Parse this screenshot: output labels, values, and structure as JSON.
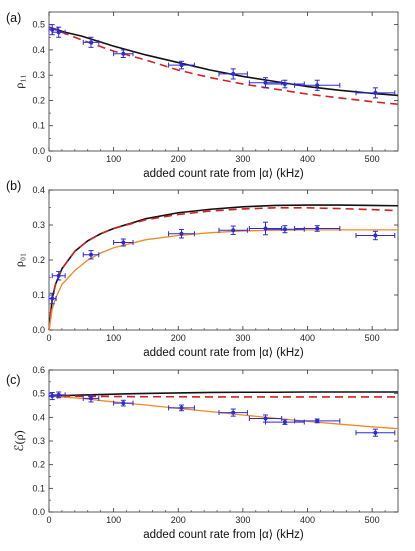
{
  "chart_data": [
    {
      "type": "scatter",
      "panel_label": "(a)",
      "xlabel": "added count rate from |α⟩ (kHz)",
      "ylabel": "ρ₁₁",
      "xlim": [
        0,
        540
      ],
      "ylim": [
        0,
        0.55
      ],
      "x_ticks": [
        0,
        100,
        200,
        300,
        400,
        500
      ],
      "y_ticks": [
        0.0,
        0.1,
        0.2,
        0.3,
        0.4,
        0.5
      ],
      "grid": false,
      "series": [
        {
          "kind": "points",
          "color": "#2b2bd9",
          "points": [
            {
              "x": 5,
              "y": 0.48,
              "xerr": 8,
              "yerr": 0.02
            },
            {
              "x": 15,
              "y": 0.47,
              "xerr": 10,
              "yerr": 0.02
            },
            {
              "x": 65,
              "y": 0.43,
              "xerr": 12,
              "yerr": 0.02
            },
            {
              "x": 115,
              "y": 0.385,
              "xerr": 15,
              "yerr": 0.015
            },
            {
              "x": 205,
              "y": 0.34,
              "xerr": 20,
              "yerr": 0.015
            },
            {
              "x": 285,
              "y": 0.305,
              "xerr": 22,
              "yerr": 0.02
            },
            {
              "x": 335,
              "y": 0.27,
              "xerr": 25,
              "yerr": 0.02
            },
            {
              "x": 365,
              "y": 0.265,
              "xerr": 30,
              "yerr": 0.015
            },
            {
              "x": 415,
              "y": 0.26,
              "xerr": 35,
              "yerr": 0.02
            },
            {
              "x": 505,
              "y": 0.23,
              "xerr": 30,
              "yerr": 0.02
            }
          ]
        },
        {
          "kind": "line",
          "color": "#111111",
          "dash": "",
          "x": [
            0,
            25,
            50,
            100,
            150,
            200,
            250,
            300,
            350,
            400,
            450,
            500,
            540
          ],
          "y": [
            0.49,
            0.47,
            0.455,
            0.415,
            0.38,
            0.35,
            0.32,
            0.295,
            0.275,
            0.255,
            0.24,
            0.228,
            0.22
          ]
        },
        {
          "kind": "line",
          "color": "#d42020",
          "dash": "8,5",
          "x": [
            0,
            25,
            50,
            100,
            150,
            200,
            250,
            300,
            350,
            400,
            450,
            500,
            540
          ],
          "y": [
            0.49,
            0.465,
            0.44,
            0.395,
            0.36,
            0.32,
            0.29,
            0.265,
            0.245,
            0.225,
            0.21,
            0.195,
            0.185
          ]
        }
      ]
    },
    {
      "type": "scatter",
      "panel_label": "(b)",
      "xlabel": "added count rate from |α⟩ (kHz)",
      "ylabel": "ρ₀₁",
      "xlim": [
        0,
        540
      ],
      "ylim": [
        0,
        0.4
      ],
      "x_ticks": [
        0,
        100,
        200,
        300,
        400,
        500
      ],
      "y_ticks": [
        0.0,
        0.1,
        0.2,
        0.3,
        0.4
      ],
      "grid": false,
      "series": [
        {
          "kind": "points",
          "color": "#2b2bd9",
          "points": [
            {
              "x": 5,
              "y": 0.09,
              "xerr": 6,
              "yerr": 0.015
            },
            {
              "x": 15,
              "y": 0.155,
              "xerr": 10,
              "yerr": 0.012
            },
            {
              "x": 65,
              "y": 0.215,
              "xerr": 12,
              "yerr": 0.012
            },
            {
              "x": 115,
              "y": 0.25,
              "xerr": 15,
              "yerr": 0.01
            },
            {
              "x": 205,
              "y": 0.275,
              "xerr": 20,
              "yerr": 0.012
            },
            {
              "x": 285,
              "y": 0.285,
              "xerr": 22,
              "yerr": 0.012
            },
            {
              "x": 335,
              "y": 0.29,
              "xerr": 25,
              "yerr": 0.018
            },
            {
              "x": 365,
              "y": 0.288,
              "xerr": 30,
              "yerr": 0.01
            },
            {
              "x": 415,
              "y": 0.29,
              "xerr": 35,
              "yerr": 0.008
            },
            {
              "x": 505,
              "y": 0.27,
              "xerr": 30,
              "yerr": 0.012
            }
          ]
        },
        {
          "kind": "line",
          "color": "#111111",
          "dash": "",
          "x": [
            0,
            5,
            10,
            20,
            40,
            60,
            80,
            100,
            150,
            200,
            250,
            300,
            350,
            400,
            450,
            500,
            540
          ],
          "y": [
            0.0,
            0.09,
            0.13,
            0.175,
            0.225,
            0.255,
            0.275,
            0.29,
            0.318,
            0.335,
            0.345,
            0.352,
            0.356,
            0.357,
            0.357,
            0.356,
            0.355
          ]
        },
        {
          "kind": "line",
          "color": "#d42020",
          "dash": "8,5",
          "x": [
            0,
            5,
            10,
            20,
            40,
            60,
            80,
            100,
            150,
            200,
            250,
            300,
            350,
            400,
            450,
            500,
            540
          ],
          "y": [
            0.0,
            0.09,
            0.13,
            0.175,
            0.225,
            0.255,
            0.275,
            0.29,
            0.315,
            0.33,
            0.34,
            0.346,
            0.349,
            0.349,
            0.347,
            0.344,
            0.341
          ]
        },
        {
          "kind": "line",
          "color": "#f08a24",
          "dash": "",
          "x": [
            0,
            5,
            10,
            20,
            40,
            60,
            80,
            100,
            150,
            200,
            250,
            300,
            350,
            400,
            450,
            500,
            540
          ],
          "y": [
            0.0,
            0.06,
            0.09,
            0.13,
            0.17,
            0.2,
            0.22,
            0.235,
            0.258,
            0.27,
            0.278,
            0.283,
            0.285,
            0.286,
            0.286,
            0.286,
            0.286
          ]
        }
      ]
    },
    {
      "type": "scatter",
      "panel_label": "(c)",
      "xlabel": "added count rate from |α⟩ (kHz)",
      "ylabel": "ℰ(ρ̂)",
      "xlim": [
        0,
        540
      ],
      "ylim": [
        0,
        0.6
      ],
      "x_ticks": [
        0,
        100,
        200,
        300,
        400,
        500
      ],
      "y_ticks": [
        0.0,
        0.1,
        0.2,
        0.3,
        0.4,
        0.5,
        0.6
      ],
      "grid": false,
      "series": [
        {
          "kind": "points",
          "color": "#2b2bd9",
          "points": [
            {
              "x": 5,
              "y": 0.49,
              "xerr": 8,
              "yerr": 0.015
            },
            {
              "x": 15,
              "y": 0.495,
              "xerr": 10,
              "yerr": 0.012
            },
            {
              "x": 65,
              "y": 0.48,
              "xerr": 12,
              "yerr": 0.015
            },
            {
              "x": 115,
              "y": 0.46,
              "xerr": 15,
              "yerr": 0.012
            },
            {
              "x": 205,
              "y": 0.44,
              "xerr": 20,
              "yerr": 0.012
            },
            {
              "x": 285,
              "y": 0.42,
              "xerr": 22,
              "yerr": 0.015
            },
            {
              "x": 335,
              "y": 0.395,
              "xerr": 25,
              "yerr": 0.015
            },
            {
              "x": 365,
              "y": 0.38,
              "xerr": 30,
              "yerr": 0.01
            },
            {
              "x": 415,
              "y": 0.385,
              "xerr": 35,
              "yerr": 0.008
            },
            {
              "x": 505,
              "y": 0.335,
              "xerr": 30,
              "yerr": 0.015
            }
          ]
        },
        {
          "kind": "line",
          "color": "#111111",
          "dash": "",
          "x": [
            0,
            50,
            100,
            150,
            200,
            250,
            300,
            350,
            400,
            450,
            500,
            540
          ],
          "y": [
            0.49,
            0.494,
            0.498,
            0.501,
            0.503,
            0.505,
            0.506,
            0.506,
            0.507,
            0.507,
            0.507,
            0.507
          ]
        },
        {
          "kind": "line",
          "color": "#d42020",
          "dash": "8,5",
          "x": [
            0,
            50,
            100,
            150,
            200,
            250,
            300,
            350,
            400,
            450,
            500,
            540
          ],
          "y": [
            0.49,
            0.489,
            0.488,
            0.487,
            0.487,
            0.486,
            0.486,
            0.486,
            0.486,
            0.486,
            0.486,
            0.486
          ]
        },
        {
          "kind": "line",
          "color": "#f08a24",
          "dash": "",
          "x": [
            0,
            50,
            100,
            150,
            200,
            250,
            300,
            350,
            400,
            450,
            500,
            540
          ],
          "y": [
            0.49,
            0.48,
            0.465,
            0.452,
            0.438,
            0.424,
            0.41,
            0.396,
            0.383,
            0.371,
            0.36,
            0.352
          ]
        }
      ]
    }
  ]
}
